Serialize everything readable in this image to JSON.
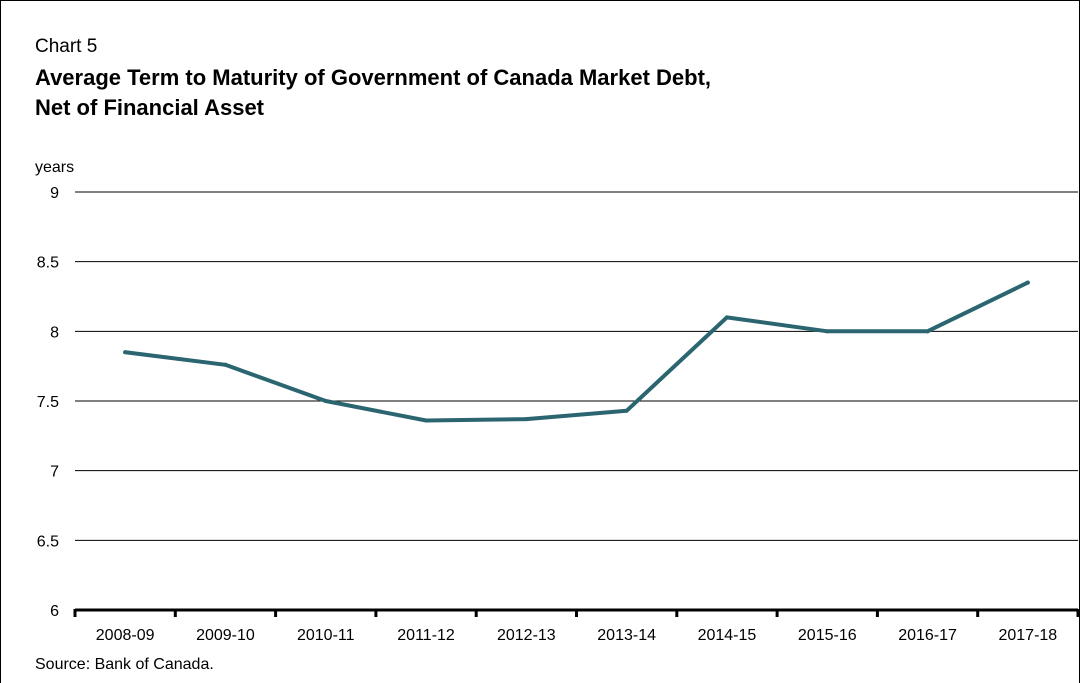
{
  "chart_label": "Chart 5",
  "title_line1": "Average Term to Maturity of Government of Canada Market Debt,",
  "title_line2": "Net of Financial Asset",
  "source": "Source: Bank of Canada.",
  "colors": {
    "line": "#2b6670",
    "grid": "#000000"
  },
  "chart_data": {
    "type": "line",
    "title": "Average Term to Maturity of Government of Canada Market Debt, Net of Financial Asset",
    "xlabel": "",
    "ylabel": "years",
    "ylim": [
      6,
      9
    ],
    "yticks": [
      6,
      6.5,
      7,
      7.5,
      8,
      8.5,
      9
    ],
    "ytick_labels": [
      "6",
      "6.5",
      "7",
      "7.5",
      "8",
      "8.5",
      "9"
    ],
    "grid": true,
    "legend": "none",
    "categories": [
      "2008-09",
      "2009-10",
      "2010-11",
      "2011-12",
      "2012-13",
      "2013-14",
      "2014-15",
      "2015-16",
      "2016-17",
      "2017-18"
    ],
    "series": [
      {
        "values": [
          7.85,
          7.76,
          7.5,
          7.36,
          7.37,
          7.43,
          8.1,
          8.0,
          8.0,
          8.35
        ]
      }
    ]
  }
}
